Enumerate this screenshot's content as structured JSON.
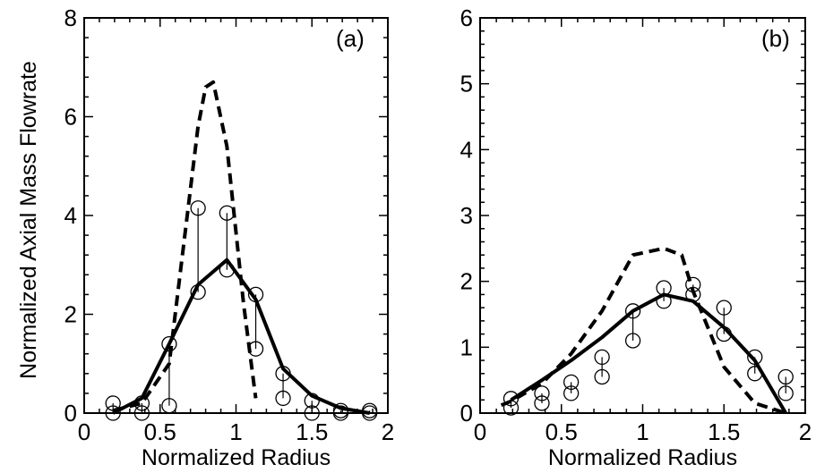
{
  "chart_data": [
    {
      "type": "line",
      "panel_label": "(a)",
      "xlabel": "Normalized Radius",
      "ylabel": "Normalized Axial Mass Flowrate",
      "xlim": [
        0,
        2
      ],
      "ylim": [
        0,
        8
      ],
      "x_ticks": [
        "0",
        "0.5",
        "1",
        "1.5",
        "2"
      ],
      "y_ticks": [
        "0",
        "2",
        "4",
        "6",
        "8"
      ],
      "series": [
        {
          "style": "dashed",
          "x": [
            0.19,
            0.38,
            0.56,
            0.75,
            0.8,
            0.85,
            0.94,
            1.05,
            1.13
          ],
          "y": [
            0.05,
            0.2,
            1.0,
            5.8,
            6.6,
            6.7,
            5.4,
            2.2,
            0.3
          ]
        },
        {
          "style": "solid",
          "x": [
            0.19,
            0.38,
            0.56,
            0.75,
            0.94,
            1.13,
            1.31,
            1.5,
            1.69,
            1.88
          ],
          "y": [
            0.0,
            0.3,
            1.4,
            2.6,
            3.1,
            2.3,
            0.9,
            0.35,
            0.1,
            0.0
          ]
        }
      ],
      "markers": [
        {
          "x": 0.19,
          "y": [
            0.0,
            0.2
          ]
        },
        {
          "x": 0.38,
          "y": [
            0.0,
            0.2
          ]
        },
        {
          "x": 0.56,
          "y": [
            0.15,
            1.4
          ]
        },
        {
          "x": 0.75,
          "y": [
            2.45,
            4.15
          ]
        },
        {
          "x": 0.94,
          "y": [
            2.9,
            4.05
          ]
        },
        {
          "x": 1.13,
          "y": [
            1.3,
            2.4
          ]
        },
        {
          "x": 1.31,
          "y": [
            0.3,
            0.8
          ]
        },
        {
          "x": 1.5,
          "y": [
            0.0,
            0.25
          ]
        },
        {
          "x": 1.69,
          "y": [
            0.0,
            0.05
          ]
        },
        {
          "x": 1.88,
          "y": [
            0.0,
            0.05
          ]
        }
      ]
    },
    {
      "type": "line",
      "panel_label": "(b)",
      "xlabel": "Normalized Radius",
      "ylabel": "",
      "xlim": [
        0,
        2
      ],
      "ylim": [
        0,
        6
      ],
      "x_ticks": [
        "0",
        "0.5",
        "1",
        "1.5",
        "2"
      ],
      "y_ticks": [
        "0",
        "1",
        "2",
        "3",
        "4",
        "5",
        "6"
      ],
      "series": [
        {
          "style": "dashed",
          "x": [
            0.13,
            0.19,
            0.38,
            0.56,
            0.75,
            0.94,
            1.13,
            1.24,
            1.31,
            1.5,
            1.69,
            1.88
          ],
          "y": [
            0.12,
            0.18,
            0.45,
            0.9,
            1.55,
            2.4,
            2.5,
            2.4,
            1.85,
            0.7,
            0.15,
            0.0
          ]
        },
        {
          "style": "solid",
          "x": [
            0.19,
            0.38,
            0.56,
            0.75,
            0.94,
            1.13,
            1.31,
            1.5,
            1.69,
            1.88
          ],
          "y": [
            0.2,
            0.5,
            0.8,
            1.15,
            1.55,
            1.8,
            1.7,
            1.3,
            0.8,
            0.0
          ]
        }
      ],
      "markers": [
        {
          "x": 0.19,
          "y": [
            0.08,
            0.22
          ]
        },
        {
          "x": 0.38,
          "y": [
            0.15,
            0.3
          ]
        },
        {
          "x": 0.56,
          "y": [
            0.3,
            0.47
          ]
        },
        {
          "x": 0.75,
          "y": [
            0.55,
            0.85
          ]
        },
        {
          "x": 0.94,
          "y": [
            1.1,
            1.55
          ]
        },
        {
          "x": 1.13,
          "y": [
            1.7,
            1.9
          ]
        },
        {
          "x": 1.31,
          "y": [
            1.8,
            1.95
          ]
        },
        {
          "x": 1.5,
          "y": [
            1.2,
            1.6
          ]
        },
        {
          "x": 1.69,
          "y": [
            0.6,
            0.85
          ]
        },
        {
          "x": 1.88,
          "y": [
            0.3,
            0.55
          ]
        }
      ]
    }
  ]
}
